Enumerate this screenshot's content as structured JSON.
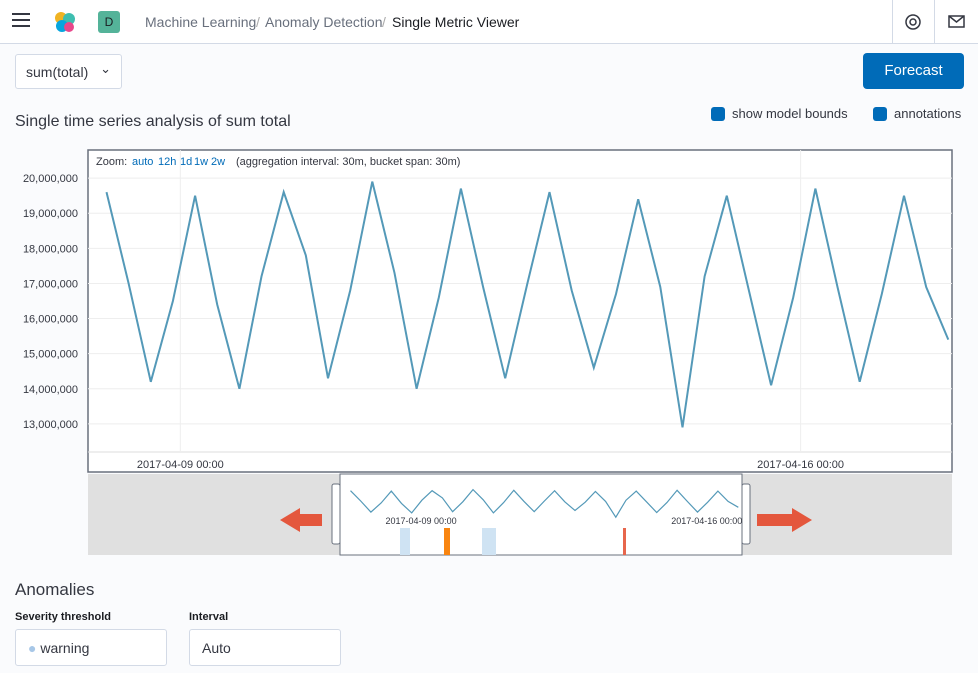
{
  "header": {
    "avatar": "D",
    "breadcrumbs": [
      "Machine Learning",
      "Anomaly Detection",
      "Single Metric Viewer"
    ]
  },
  "toolbar": {
    "metric": "sum(total)",
    "button": "Forecast"
  },
  "panel": {
    "title": "Single time series analysis of sum total",
    "checkboxes": [
      "show model bounds",
      "annotations"
    ]
  },
  "zoom": {
    "label": "Zoom:",
    "options": [
      "auto",
      "12h",
      "1d",
      "1w",
      "2w"
    ],
    "info": "(aggregation interval: 30m, bucket span: 30m)"
  },
  "chart_data": {
    "type": "line",
    "color": "#5499b8",
    "x": [
      "2017-04-08 04:00",
      "2017-04-08 10:00",
      "2017-04-08 16:00",
      "2017-04-08 22:00",
      "2017-04-09 04:00",
      "2017-04-09 10:00",
      "2017-04-09 16:00",
      "2017-04-09 22:00",
      "2017-04-10 04:00",
      "2017-04-10 10:00",
      "2017-04-10 16:00",
      "2017-04-10 22:00",
      "2017-04-11 04:00",
      "2017-04-11 10:00",
      "2017-04-11 16:00",
      "2017-04-11 22:00",
      "2017-04-12 04:00",
      "2017-04-12 10:00",
      "2017-04-12 16:00",
      "2017-04-12 22:00",
      "2017-04-13 04:00",
      "2017-04-13 10:00",
      "2017-04-13 16:00",
      "2017-04-13 22:00",
      "2017-04-14 04:00",
      "2017-04-14 10:00",
      "2017-04-14 16:00",
      "2017-04-14 22:00",
      "2017-04-15 04:00",
      "2017-04-15 10:00",
      "2017-04-15 16:00",
      "2017-04-15 22:00",
      "2017-04-16 04:00",
      "2017-04-16 10:00",
      "2017-04-16 16:00",
      "2017-04-16 22:00",
      "2017-04-17 04:00",
      "2017-04-17 10:00",
      "2017-04-17 16:00"
    ],
    "values": [
      19600000,
      17000000,
      14200000,
      16500000,
      19500000,
      16400000,
      14000000,
      17200000,
      19600000,
      17800000,
      14300000,
      16800000,
      19900000,
      17300000,
      14000000,
      16600000,
      19700000,
      16900000,
      14300000,
      17000000,
      19600000,
      16800000,
      14600000,
      16700000,
      19400000,
      16900000,
      12900000,
      17200000,
      19500000,
      16800000,
      14100000,
      16600000,
      19700000,
      16900000,
      14200000,
      16700000,
      19500000,
      16900000,
      15400000
    ],
    "xlim": [
      "2017-04-07 23:00",
      "2017-04-17 17:00"
    ],
    "xticks": [
      "2017-04-09 00:00",
      "2017-04-16 00:00"
    ],
    "ylim": [
      12200000,
      20800000
    ],
    "yticks": [
      {
        "value": 13000000,
        "label": "13,000,000"
      },
      {
        "value": 14000000,
        "label": "14,000,000"
      },
      {
        "value": 15000000,
        "label": "15,000,000"
      },
      {
        "value": 16000000,
        "label": "16,000,000"
      },
      {
        "value": 17000000,
        "label": "17,000,000"
      },
      {
        "value": 18000000,
        "label": "18,000,000"
      },
      {
        "value": 19000000,
        "label": "19,000,000"
      },
      {
        "value": 20000000,
        "label": "20,000,000"
      }
    ],
    "grid": true
  },
  "anomalies": {
    "title": "Anomalies",
    "severity_label": "Severity threshold",
    "severity": "warning",
    "interval_label": "Interval",
    "interval": "Auto"
  }
}
